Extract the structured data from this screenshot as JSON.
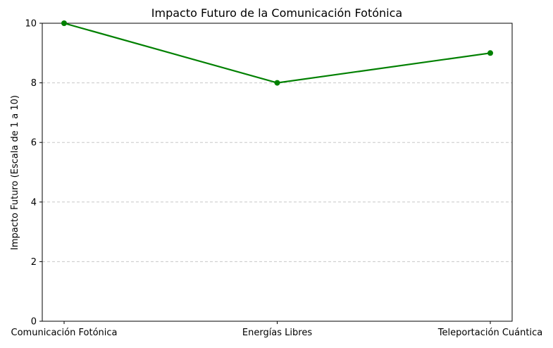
{
  "chart_data": {
    "type": "line",
    "title": "Impacto Futuro de la Comunicación Fotónica",
    "xlabel": "",
    "ylabel": "Impacto Futuro (Escala de 1 a 10)",
    "categories": [
      "Comunicación Fotónica",
      "Energías Libres",
      "Teleportación Cuántica"
    ],
    "series": [
      {
        "values": [
          10,
          8,
          9
        ],
        "color": "#008000",
        "marker": "circle"
      }
    ],
    "ylim": [
      0,
      10
    ],
    "yticks": [
      0,
      2,
      4,
      6,
      8,
      10
    ],
    "grid": "y-dashed",
    "grid_color": "#c8c8c8",
    "legend": "none"
  }
}
